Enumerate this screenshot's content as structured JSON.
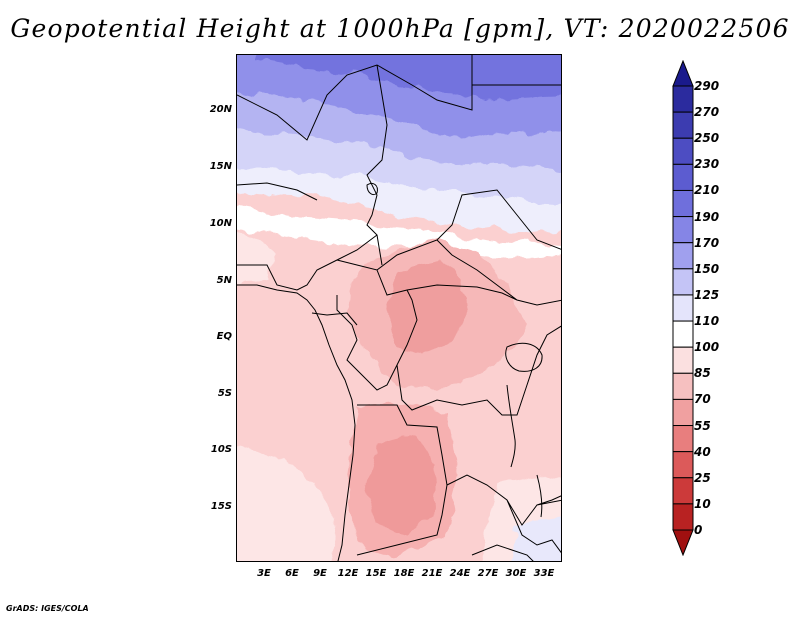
{
  "title": "Geopotential Height at 1000hPa [gpm], VT: 2020022506",
  "map": {
    "region": "Central Africa",
    "variable": "Geopotential Height",
    "level": "1000hPa",
    "units": "gpm",
    "valid_time": "2020022506",
    "lat_labels": [
      "20N",
      "15N",
      "10N",
      "5N",
      "EQ",
      "5S",
      "10S",
      "15S"
    ],
    "lon_labels": [
      "3E",
      "6E",
      "9E",
      "12E",
      "15E",
      "18E",
      "21E",
      "24E",
      "27E",
      "30E",
      "33E"
    ]
  },
  "colorbar": {
    "levels": [
      "290",
      "270",
      "250",
      "230",
      "210",
      "190",
      "170",
      "150",
      "125",
      "110",
      "100",
      "85",
      "70",
      "55",
      "40",
      "25",
      "10",
      "0"
    ],
    "colors": [
      "#1a1a8c",
      "#2b2b9e",
      "#3c3cb0",
      "#4d4dc2",
      "#5c5cd0",
      "#6f6fdc",
      "#8585e6",
      "#a0a0ee",
      "#c4c4f6",
      "#e4e4fb",
      "#ffffff",
      "#fbe0e0",
      "#f6c0c0",
      "#f0a0a0",
      "#e87e7e",
      "#dc5a5a",
      "#cc3a3a",
      "#b82222",
      "#a01010"
    ]
  },
  "credit": "GrADS: IGES/COLA"
}
